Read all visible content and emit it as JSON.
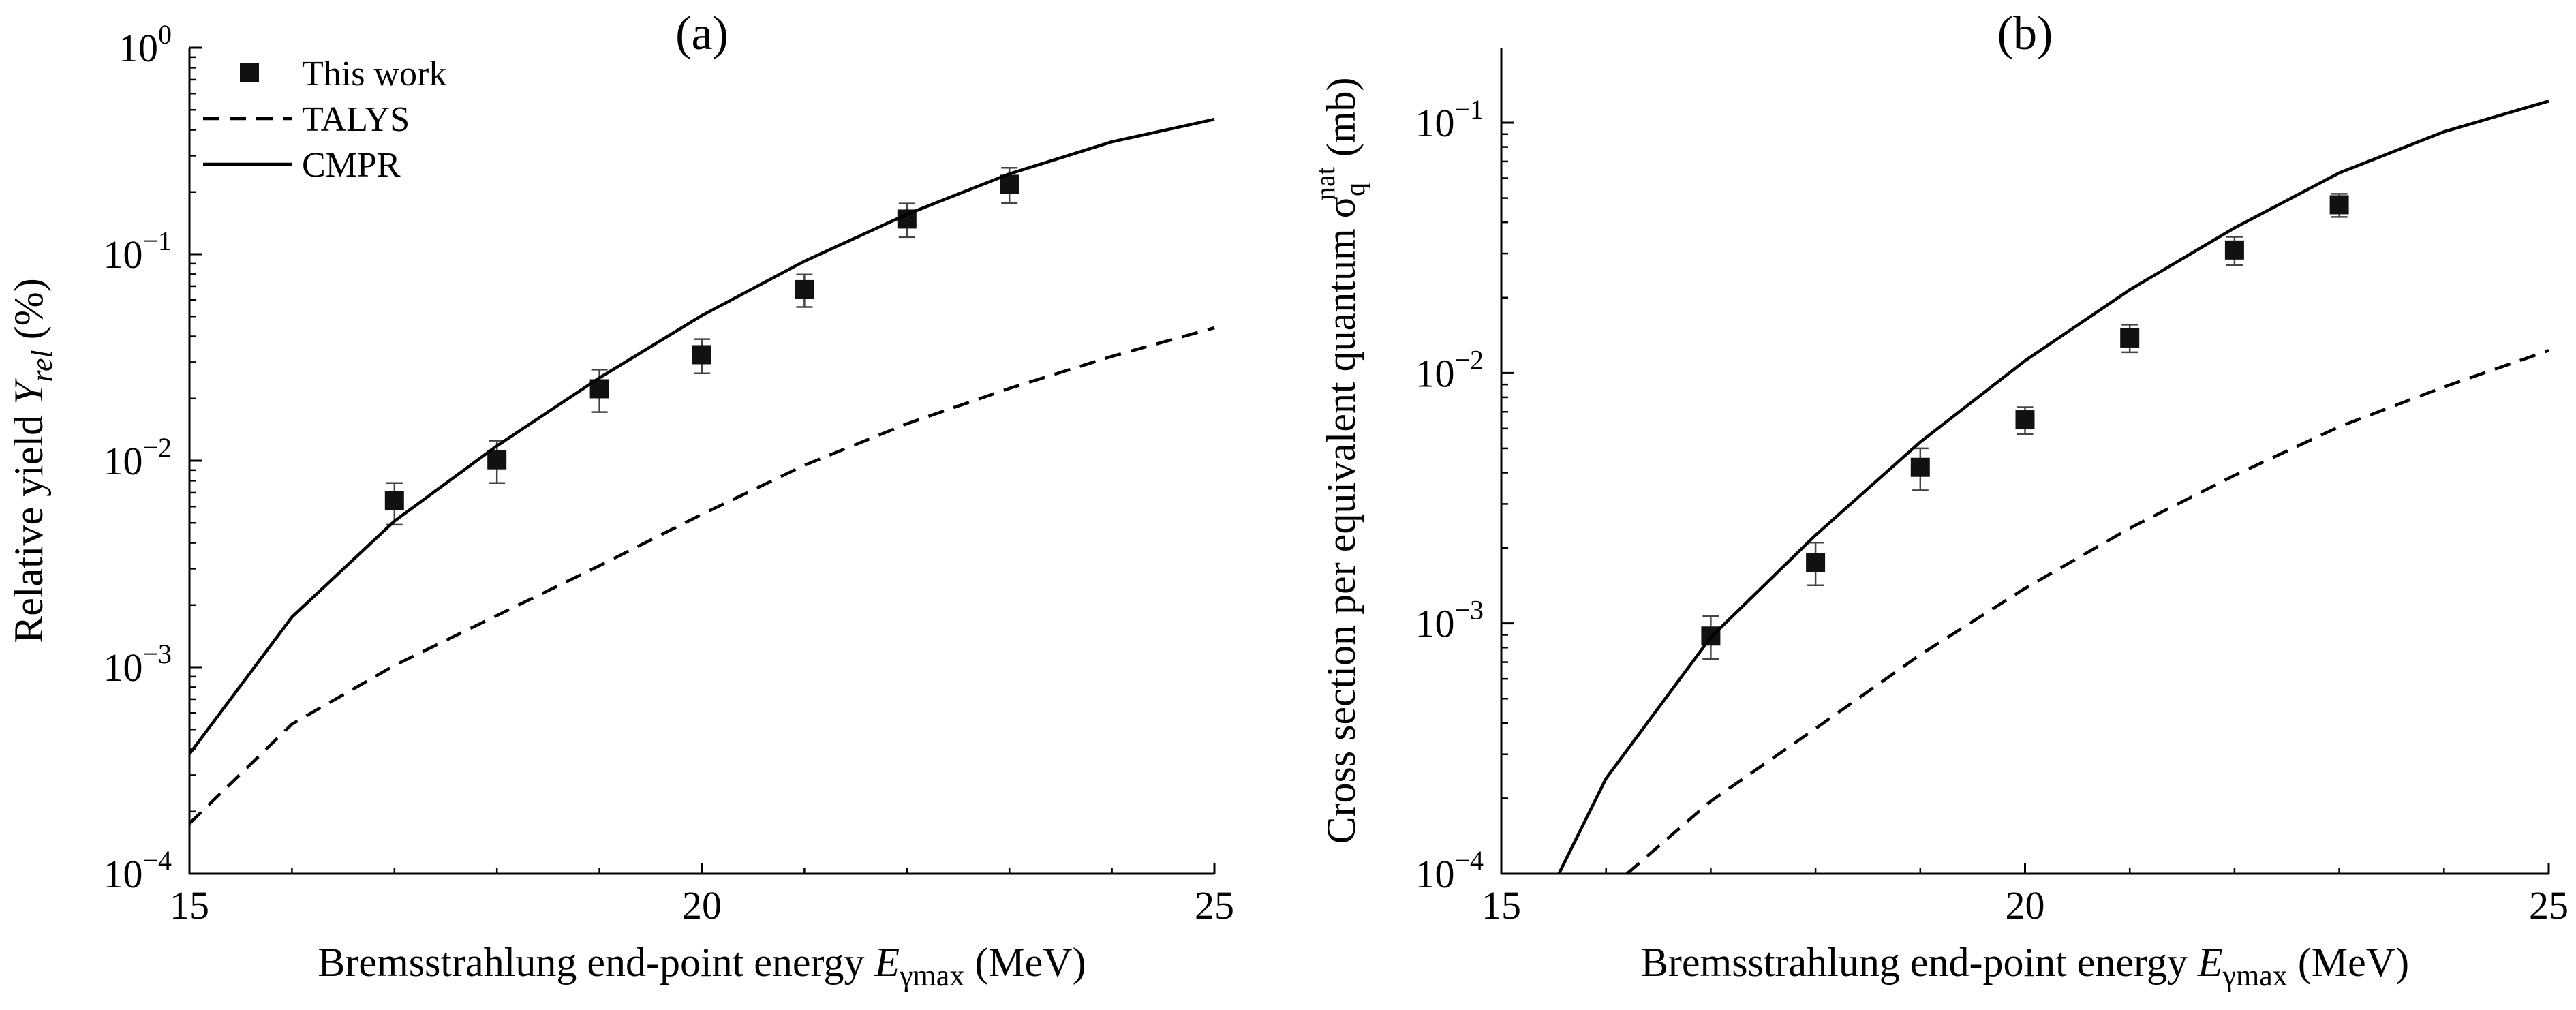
{
  "chart_data": [
    {
      "type": "scatter",
      "panel_label": "(a)",
      "x_scale": "linear",
      "y_scale": "log",
      "xlabel_parts": [
        "Bremsstrahlung end-point energy ",
        "E",
        "γmax",
        " (MeV)"
      ],
      "ylabel_parts": [
        "Relative yield ",
        "Y",
        "rel",
        " (%)"
      ],
      "xlim": [
        15,
        25
      ],
      "ylim": [
        0.0001,
        1
      ],
      "x_ticks": [
        15,
        20,
        25
      ],
      "x_tick_labels": [
        "15",
        "20",
        "25"
      ],
      "y_ticks": [
        0.0001,
        0.001,
        0.01,
        0.1,
        1
      ],
      "y_tick_labels": [
        [
          "10",
          "−4"
        ],
        [
          "10",
          "−3"
        ],
        [
          "10",
          "−2"
        ],
        [
          "10",
          "−1"
        ],
        [
          "10",
          "0"
        ]
      ],
      "legend": {
        "position": "top-left",
        "entries": [
          {
            "label": "This work",
            "marker": "square"
          },
          {
            "label": "TALYS",
            "line": "dashed"
          },
          {
            "label": "CMPR",
            "line": "solid"
          }
        ]
      },
      "series": [
        {
          "name": "This work",
          "style": "square",
          "x": [
            17,
            18,
            19,
            20,
            21,
            22,
            23
          ],
          "y": [
            0.0064,
            0.0101,
            0.0223,
            0.0326,
            0.0674,
            0.148,
            0.218
          ],
          "err_low": [
            0.0049,
            0.0078,
            0.0172,
            0.0265,
            0.0555,
            0.121,
            0.177
          ],
          "err_high": [
            0.0078,
            0.0125,
            0.0276,
            0.0388,
            0.0798,
            0.176,
            0.262
          ]
        },
        {
          "name": "TALYS",
          "style": "dashed",
          "x": [
            15,
            16,
            17,
            18,
            19,
            20,
            21,
            22,
            23,
            24,
            25
          ],
          "y": [
            0.000175,
            0.00053,
            0.00102,
            0.00178,
            0.0031,
            0.0055,
            0.0095,
            0.0151,
            0.0224,
            0.032,
            0.044
          ]
        },
        {
          "name": "CMPR",
          "style": "solid",
          "x": [
            15,
            16,
            17,
            18,
            19,
            20,
            21,
            22,
            23,
            24,
            25
          ],
          "y": [
            0.00038,
            0.00175,
            0.0051,
            0.0118,
            0.0252,
            0.0505,
            0.0925,
            0.156,
            0.245,
            0.35,
            0.45
          ]
        }
      ]
    },
    {
      "type": "scatter",
      "panel_label": "(b)",
      "x_scale": "linear",
      "y_scale": "log",
      "xlabel_parts": [
        "Bremsstrahlung end-point energy ",
        "E",
        "γmax",
        " (MeV)"
      ],
      "ylabel_parts": [
        "Cross section per equivalent quantum σ",
        "q",
        "nat",
        " (mb)"
      ],
      "xlim": [
        15,
        25
      ],
      "ylim": [
        0.0001,
        0.2
      ],
      "x_ticks": [
        15,
        20,
        25
      ],
      "x_tick_labels": [
        "15",
        "20",
        "25"
      ],
      "y_ticks": [
        0.0001,
        0.001,
        0.01,
        0.1
      ],
      "y_tick_labels": [
        [
          "10",
          "−4"
        ],
        [
          "10",
          "−3"
        ],
        [
          "10",
          "−2"
        ],
        [
          "10",
          "−1"
        ]
      ],
      "series": [
        {
          "name": "This work",
          "style": "square",
          "x": [
            17,
            18,
            19,
            20,
            21,
            22,
            23
          ],
          "y": [
            0.00089,
            0.00175,
            0.0042,
            0.0065,
            0.0138,
            0.031,
            0.047
          ],
          "err_low": [
            0.00072,
            0.00142,
            0.0034,
            0.0057,
            0.0121,
            0.027,
            0.042
          ],
          "err_high": [
            0.00107,
            0.0021,
            0.005,
            0.0073,
            0.0156,
            0.035,
            0.052
          ]
        },
        {
          "name": "TALYS",
          "style": "dashed",
          "x": [
            16.2,
            17,
            18,
            19,
            20,
            21,
            22,
            23,
            24,
            25
          ],
          "y": [
            0.0001,
            0.000195,
            0.00038,
            0.00075,
            0.00138,
            0.0024,
            0.0039,
            0.0061,
            0.0088,
            0.0123
          ]
        },
        {
          "name": "CMPR",
          "style": "solid",
          "x": [
            15.55,
            16,
            17,
            18,
            19,
            20,
            21,
            22,
            23,
            24,
            25
          ],
          "y": [
            0.0001,
            0.00024,
            0.00088,
            0.00225,
            0.0053,
            0.0112,
            0.0215,
            0.038,
            0.063,
            0.092,
            0.122
          ]
        }
      ]
    }
  ]
}
